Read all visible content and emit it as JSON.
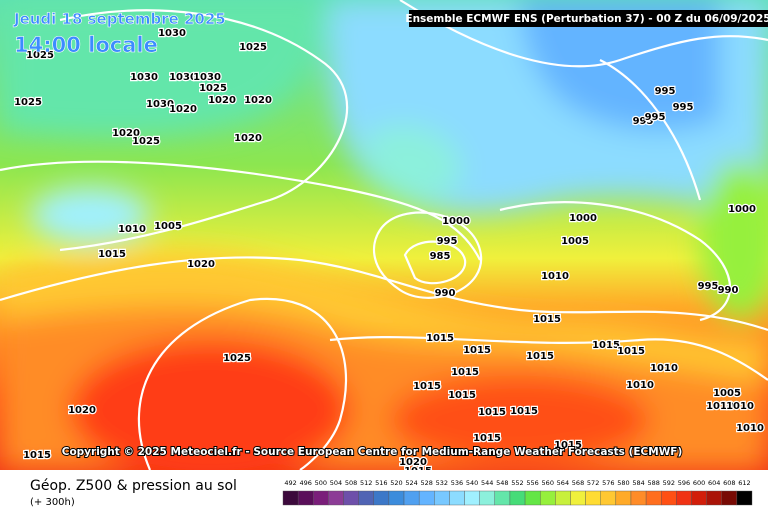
{
  "header": {
    "date": "Jeudi 18 septembre 2025",
    "time": "14:00 locale",
    "run": "Ensemble ECMWF ENS  (Perturbation 37)  -  00 Z du 06/09/2025"
  },
  "copyright": "Copyright © 2025 Meteociel.fr - Source European Centre for Medium-Range Weather Forecasts (ECMWF)",
  "footer": {
    "title": "Géop. Z500 & pression au sol",
    "subtitle": "(+ 300h)"
  },
  "isobar_labels": [
    "1030",
    "1025",
    "1025",
    "1030",
    "1030",
    "1030",
    "1025",
    "1025",
    "1020",
    "1020",
    "1030",
    "1020",
    "1020",
    "1025",
    "1020",
    "1010",
    "1005",
    "1015",
    "1020",
    "1000",
    "995",
    "985",
    "990",
    "1000",
    "1005",
    "1010",
    "995",
    "995",
    "995",
    "995",
    "1000",
    "995",
    "990",
    "1015",
    "1015",
    "1015",
    "1015",
    "1015",
    "1015",
    "1010",
    "1015",
    "1015",
    "1010",
    "1005",
    "1010",
    "1010",
    "1015",
    "1015",
    "1015",
    "1015",
    "1010",
    "1025",
    "1020",
    "1015",
    "1020",
    "1015",
    "1015"
  ],
  "legend": {
    "labels": [
      492,
      496,
      500,
      504,
      508,
      512,
      516,
      520,
      524,
      528,
      532,
      536,
      540,
      544,
      548,
      552,
      556,
      560,
      564,
      568,
      572,
      576,
      580,
      584,
      588,
      592,
      596,
      600,
      604,
      608,
      612
    ],
    "colors": [
      "#3c0a3c",
      "#5a0f5a",
      "#7a1e7a",
      "#8c3c96",
      "#6e50aa",
      "#5064b4",
      "#3c78c8",
      "#3c8cdc",
      "#50a0f0",
      "#64b4ff",
      "#78c8ff",
      "#8cdcff",
      "#a0f0ff",
      "#8cf0dc",
      "#64e6aa",
      "#46dc78",
      "#64e646",
      "#96f03c",
      "#c8f03c",
      "#f0f03c",
      "#ffdc32",
      "#ffc832",
      "#ffaa28",
      "#ff8c28",
      "#ff6e1e",
      "#ff5014",
      "#f03214",
      "#d21e0a",
      "#aa1408",
      "#780a04",
      "#000000"
    ]
  }
}
